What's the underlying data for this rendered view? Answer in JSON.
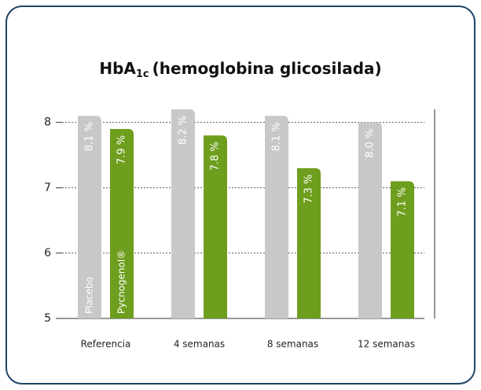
{
  "chart_data": {
    "type": "bar",
    "title": {
      "main": "HbA",
      "subscript": "1c",
      "rest": "(hemoglobina glicosilada)"
    },
    "categories": [
      "Referencia",
      "4 semanas",
      "8 semanas",
      "12 semanas"
    ],
    "series": [
      {
        "name": "Placebo",
        "color": "#c8c8c8",
        "values": [
          8.1,
          8.2,
          8.1,
          8.0
        ],
        "value_labels": [
          "8.1 %",
          "8.2 %",
          "8.1 %",
          "8.0 %"
        ]
      },
      {
        "name": "Pycnogenol®",
        "color": "#6e9e1e",
        "values": [
          7.9,
          7.8,
          7.3,
          7.1
        ],
        "value_labels": [
          "7.9 %",
          "7.8 %",
          "7.3 %",
          "7.1 %"
        ]
      }
    ],
    "ylim": [
      5,
      8.2
    ],
    "yticks": [
      5,
      6,
      7,
      8
    ],
    "grid": true
  }
}
